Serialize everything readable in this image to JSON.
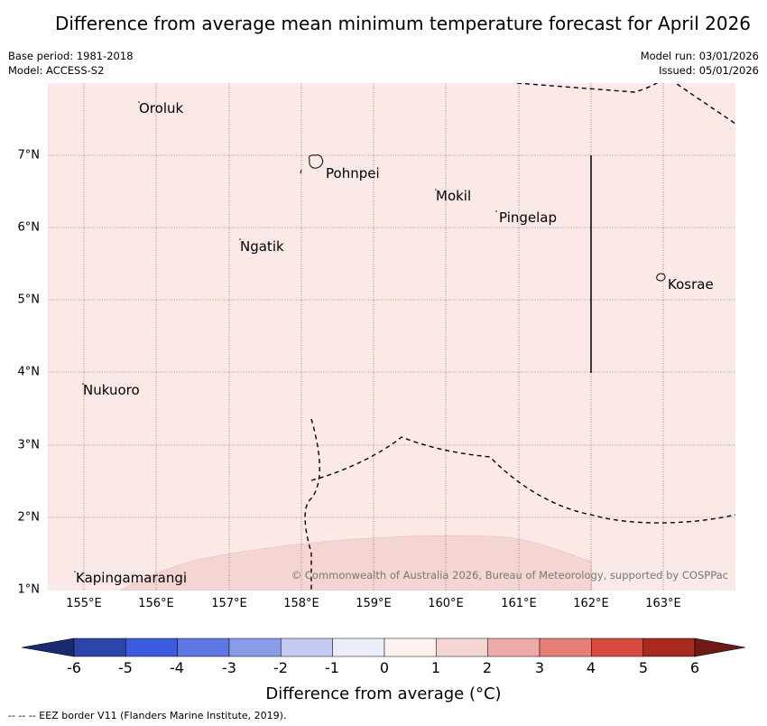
{
  "title": "Difference from average mean minimum temperature forecast for April 2026",
  "meta": {
    "base_period": "Base period: 1981-2018",
    "model": "Model: ACCESS-S2",
    "model_run": "Model run: 03/01/2026",
    "issued": "Issued: 05/01/2026"
  },
  "map": {
    "lat_labels": [
      "7°N",
      "6°N",
      "5°N",
      "4°N",
      "3°N",
      "2°N",
      "1°N"
    ],
    "lon_labels": [
      "155°E",
      "156°E",
      "157°E",
      "158°E",
      "159°E",
      "160°E",
      "161°E",
      "162°E",
      "163°E"
    ],
    "places": {
      "oroluk": "Oroluk",
      "pohnpei": "Pohnpei",
      "mokil": "Mokil",
      "pingelap": "Pingelap",
      "ngatik": "Ngatik",
      "kosrae": "Kosrae",
      "nukuoro": "Nukuoro",
      "kapingamarangi": "Kapingamarangi"
    },
    "copyright": "© Commonwealth of Australia 2026, Bureau of Meteorology, supported by COSPPac",
    "background_color": "#fbe9e7",
    "patch_color": "#f5d5d2"
  },
  "colorbar": {
    "ticks": [
      "-6",
      "-5",
      "-4",
      "-3",
      "-2",
      "-1",
      "0",
      "1",
      "2",
      "3",
      "4",
      "5",
      "6"
    ],
    "colors": [
      "#2b45a8",
      "#3d5be0",
      "#5f77e2",
      "#8a9ce8",
      "#c4cbf2",
      "#ecedfb",
      "#fdf1f0",
      "#f5d5d2",
      "#eeaaa6",
      "#e57f78",
      "#d84a3f",
      "#a82920"
    ],
    "min_extend_color": "#1b2a6e",
    "max_extend_color": "#6e1a15",
    "label": "Difference from average (°C)"
  },
  "footer": "--  --  -- EEZ border V11 (Flanders Marine Institute, 2019)."
}
